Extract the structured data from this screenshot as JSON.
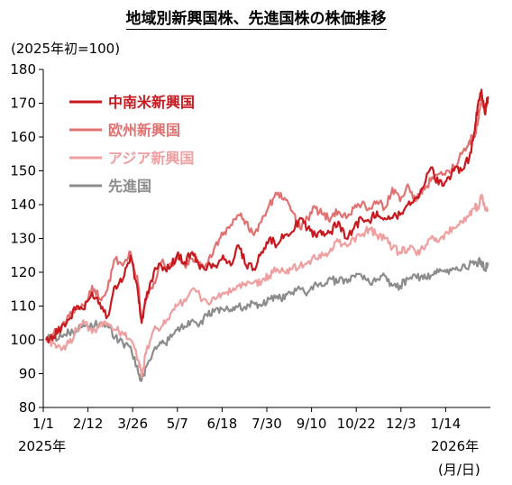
{
  "title": "地域別新興国株、先進国株の株価推移",
  "unit_label": "(2025年初=100)",
  "x_year_start": "2025年",
  "x_year_end": "2026年",
  "x_unit": "(月/日)",
  "chart_data": {
    "type": "line",
    "ylim": [
      80,
      180
    ],
    "yticks": [
      80,
      90,
      100,
      110,
      120,
      130,
      140,
      150,
      160,
      170,
      180
    ],
    "x_tick_labels": [
      "1/1",
      "2/12",
      "3/26",
      "5/7",
      "6/18",
      "7/30",
      "9/10",
      "10/22",
      "12/3",
      "1/14"
    ],
    "x_range_days": [
      0,
      400
    ],
    "grid": false,
    "legend_position": "top-left",
    "series": [
      {
        "name": "中南米新興国",
        "color": "#c8191f",
        "points": [
          [
            0,
            100
          ],
          [
            7,
            101
          ],
          [
            14,
            104
          ],
          [
            21,
            106
          ],
          [
            28,
            110
          ],
          [
            35,
            109
          ],
          [
            42,
            114
          ],
          [
            49,
            111
          ],
          [
            56,
            107
          ],
          [
            63,
            116
          ],
          [
            70,
            118
          ],
          [
            77,
            125
          ],
          [
            84,
            113
          ],
          [
            87,
            105
          ],
          [
            91,
            112
          ],
          [
            98,
            120
          ],
          [
            105,
            122
          ],
          [
            112,
            121
          ],
          [
            119,
            125
          ],
          [
            126,
            123
          ],
          [
            133,
            126
          ],
          [
            140,
            121
          ],
          [
            147,
            122
          ],
          [
            154,
            122
          ],
          [
            161,
            125
          ],
          [
            168,
            122
          ],
          [
            175,
            128
          ],
          [
            182,
            122
          ],
          [
            189,
            121
          ],
          [
            196,
            126
          ],
          [
            203,
            130
          ],
          [
            210,
            128
          ],
          [
            217,
            131
          ],
          [
            224,
            132
          ],
          [
            231,
            136
          ],
          [
            238,
            133
          ],
          [
            245,
            131
          ],
          [
            252,
            132
          ],
          [
            259,
            132
          ],
          [
            266,
            135
          ],
          [
            273,
            130
          ],
          [
            280,
            133
          ],
          [
            287,
            136
          ],
          [
            294,
            135
          ],
          [
            301,
            138
          ],
          [
            308,
            136
          ],
          [
            315,
            136
          ],
          [
            322,
            137
          ],
          [
            329,
            140
          ],
          [
            336,
            142
          ],
          [
            343,
            145
          ],
          [
            350,
            151
          ],
          [
            357,
            146
          ],
          [
            364,
            147
          ],
          [
            371,
            150
          ],
          [
            378,
            150
          ],
          [
            385,
            154
          ],
          [
            390,
            162
          ],
          [
            393,
            170
          ],
          [
            396,
            174
          ],
          [
            399,
            167
          ],
          [
            402,
            172
          ]
        ]
      },
      {
        "name": "欧州新興国",
        "color": "#e07272",
        "points": [
          [
            0,
            100
          ],
          [
            7,
            102
          ],
          [
            14,
            103
          ],
          [
            21,
            107
          ],
          [
            28,
            109
          ],
          [
            35,
            110
          ],
          [
            42,
            116
          ],
          [
            49,
            112
          ],
          [
            56,
            115
          ],
          [
            63,
            124
          ],
          [
            70,
            122
          ],
          [
            77,
            126
          ],
          [
            84,
            116
          ],
          [
            87,
            106
          ],
          [
            91,
            112
          ],
          [
            98,
            117
          ],
          [
            105,
            123
          ],
          [
            112,
            122
          ],
          [
            119,
            124
          ],
          [
            126,
            122
          ],
          [
            133,
            124
          ],
          [
            140,
            123
          ],
          [
            147,
            122
          ],
          [
            154,
            128
          ],
          [
            161,
            131
          ],
          [
            168,
            134
          ],
          [
            175,
            137
          ],
          [
            182,
            135
          ],
          [
            189,
            131
          ],
          [
            196,
            135
          ],
          [
            203,
            140
          ],
          [
            210,
            143
          ],
          [
            217,
            142
          ],
          [
            224,
            138
          ],
          [
            231,
            133
          ],
          [
            238,
            136
          ],
          [
            245,
            139
          ],
          [
            252,
            137
          ],
          [
            259,
            136
          ],
          [
            266,
            138
          ],
          [
            273,
            136
          ],
          [
            280,
            139
          ],
          [
            287,
            140
          ],
          [
            294,
            139
          ],
          [
            301,
            141
          ],
          [
            308,
            139
          ],
          [
            315,
            145
          ],
          [
            322,
            141
          ],
          [
            329,
            146
          ],
          [
            336,
            141
          ],
          [
            343,
            145
          ],
          [
            350,
            147
          ],
          [
            357,
            149
          ],
          [
            364,
            150
          ],
          [
            371,
            151
          ],
          [
            378,
            155
          ],
          [
            385,
            159
          ],
          [
            390,
            160
          ],
          [
            393,
            165
          ],
          [
            396,
            172
          ],
          [
            399,
            168
          ],
          [
            402,
            170
          ]
        ]
      },
      {
        "name": "アジア新興国",
        "color": "#ef9f9f",
        "points": [
          [
            0,
            100
          ],
          [
            7,
            99
          ],
          [
            14,
            97
          ],
          [
            21,
            99
          ],
          [
            28,
            103
          ],
          [
            35,
            105
          ],
          [
            42,
            102
          ],
          [
            49,
            104
          ],
          [
            56,
            105
          ],
          [
            63,
            103
          ],
          [
            70,
            102
          ],
          [
            77,
            100
          ],
          [
            84,
            94
          ],
          [
            87,
            89
          ],
          [
            91,
            96
          ],
          [
            98,
            103
          ],
          [
            105,
            104
          ],
          [
            112,
            106
          ],
          [
            119,
            110
          ],
          [
            126,
            112
          ],
          [
            133,
            115
          ],
          [
            140,
            113
          ],
          [
            147,
            111
          ],
          [
            154,
            112
          ],
          [
            161,
            114
          ],
          [
            168,
            114
          ],
          [
            175,
            116
          ],
          [
            182,
            116
          ],
          [
            189,
            117
          ],
          [
            196,
            117
          ],
          [
            203,
            119
          ],
          [
            210,
            121
          ],
          [
            217,
            120
          ],
          [
            224,
            121
          ],
          [
            231,
            122
          ],
          [
            238,
            123
          ],
          [
            245,
            124
          ],
          [
            252,
            125
          ],
          [
            259,
            127
          ],
          [
            266,
            129
          ],
          [
            273,
            128
          ],
          [
            280,
            130
          ],
          [
            287,
            131
          ],
          [
            294,
            133
          ],
          [
            301,
            131
          ],
          [
            308,
            130
          ],
          [
            315,
            127
          ],
          [
            322,
            126
          ],
          [
            329,
            127
          ],
          [
            336,
            126
          ],
          [
            343,
            127
          ],
          [
            350,
            130
          ],
          [
            357,
            129
          ],
          [
            364,
            132
          ],
          [
            371,
            133
          ],
          [
            378,
            135
          ],
          [
            385,
            137
          ],
          [
            390,
            139
          ],
          [
            393,
            139
          ],
          [
            396,
            143
          ],
          [
            399,
            139
          ],
          [
            402,
            138
          ]
        ]
      },
      {
        "name": "先進国",
        "color": "#8c8c8c",
        "points": [
          [
            0,
            100
          ],
          [
            7,
            101
          ],
          [
            14,
            101
          ],
          [
            21,
            102
          ],
          [
            28,
            103
          ],
          [
            35,
            104
          ],
          [
            42,
            104
          ],
          [
            49,
            105
          ],
          [
            56,
            104
          ],
          [
            63,
            101
          ],
          [
            70,
            99
          ],
          [
            77,
            98
          ],
          [
            84,
            90
          ],
          [
            87,
            88
          ],
          [
            91,
            92
          ],
          [
            98,
            97
          ],
          [
            105,
            99
          ],
          [
            112,
            100
          ],
          [
            119,
            103
          ],
          [
            126,
            104
          ],
          [
            133,
            106
          ],
          [
            140,
            105
          ],
          [
            147,
            107
          ],
          [
            154,
            109
          ],
          [
            161,
            109
          ],
          [
            168,
            109
          ],
          [
            175,
            110
          ],
          [
            182,
            109
          ],
          [
            189,
            111
          ],
          [
            196,
            110
          ],
          [
            203,
            112
          ],
          [
            210,
            113
          ],
          [
            217,
            112
          ],
          [
            224,
            114
          ],
          [
            231,
            115
          ],
          [
            238,
            114
          ],
          [
            245,
            117
          ],
          [
            252,
            116
          ],
          [
            259,
            118
          ],
          [
            266,
            117
          ],
          [
            273,
            118
          ],
          [
            280,
            119
          ],
          [
            287,
            119
          ],
          [
            294,
            117
          ],
          [
            301,
            118
          ],
          [
            308,
            119
          ],
          [
            315,
            116
          ],
          [
            322,
            116
          ],
          [
            329,
            118
          ],
          [
            336,
            119
          ],
          [
            343,
            118
          ],
          [
            350,
            119
          ],
          [
            357,
            120
          ],
          [
            364,
            120
          ],
          [
            371,
            121
          ],
          [
            378,
            121
          ],
          [
            385,
            122
          ],
          [
            390,
            123
          ],
          [
            393,
            123
          ],
          [
            396,
            123
          ],
          [
            399,
            121
          ],
          [
            402,
            122
          ]
        ]
      }
    ]
  }
}
